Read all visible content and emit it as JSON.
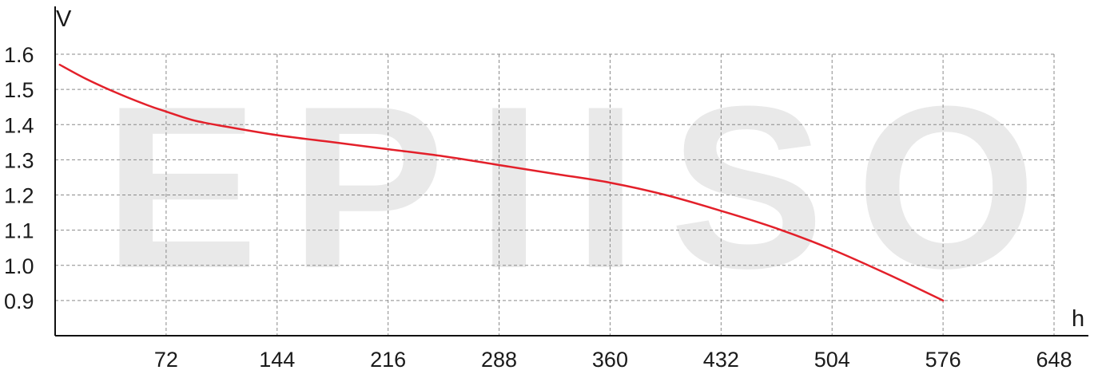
{
  "watermark": "EPIISO",
  "chart_data": {
    "type": "line",
    "xlabel": "h",
    "ylabel": "V",
    "xlim": [
      0,
      648
    ],
    "ylim": [
      0.8,
      1.6
    ],
    "x_ticks": [
      72,
      144,
      216,
      288,
      360,
      432,
      504,
      576,
      648
    ],
    "y_ticks": [
      0.9,
      1.0,
      1.1,
      1.2,
      1.3,
      1.4,
      1.5,
      1.6
    ],
    "y_tick_labels": [
      "0.9",
      "1.0",
      "1.1",
      "1.2",
      "1.3",
      "1.4",
      "1.5",
      "1.6"
    ],
    "grid": true,
    "series": [
      {
        "color": "#e3202a",
        "x": [
          3,
          20,
          40,
          60,
          72,
          90,
          110,
          144,
          180,
          216,
          252,
          288,
          324,
          360,
          396,
          432,
          468,
          504,
          540,
          576
        ],
        "y": [
          1.57,
          1.53,
          1.49,
          1.455,
          1.437,
          1.412,
          1.395,
          1.37,
          1.35,
          1.33,
          1.31,
          1.285,
          1.26,
          1.235,
          1.2,
          1.155,
          1.105,
          1.045,
          0.975,
          0.9
        ]
      }
    ]
  }
}
